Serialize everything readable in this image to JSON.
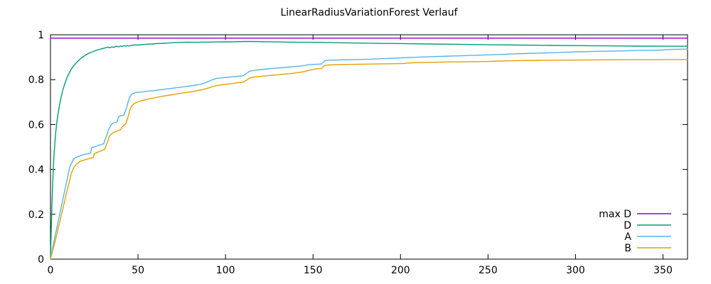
{
  "title": "LinearRadiusVariationForest Verlauf",
  "colors": {
    "axis": "#000000",
    "background": "#ffffff"
  },
  "chart_data": {
    "type": "line",
    "title": "LinearRadiusVariationForest Verlauf",
    "xlabel": "",
    "ylabel": "",
    "xlim": [
      0,
      364
    ],
    "ylim": [
      0,
      1
    ],
    "x_ticks": [
      0,
      50,
      100,
      150,
      200,
      250,
      300,
      350
    ],
    "y_ticks": [
      0,
      0.2,
      0.4,
      0.6,
      0.8,
      1
    ],
    "grid": false,
    "legend_position": "inside-bottom-right",
    "series": [
      {
        "name": "max D",
        "color": "#9400D3",
        "points": [
          [
            0,
            0.985
          ],
          [
            364,
            0.985
          ]
        ]
      },
      {
        "name": "D",
        "color": "#009E73",
        "points": [
          [
            0,
            0
          ],
          [
            0.4,
            0.12
          ],
          [
            0.8,
            0.24
          ],
          [
            1.2,
            0.33
          ],
          [
            1.6,
            0.4
          ],
          [
            2,
            0.46
          ],
          [
            2.5,
            0.52
          ],
          [
            3,
            0.565
          ],
          [
            3.5,
            0.6
          ],
          [
            4,
            0.63
          ],
          [
            5,
            0.68
          ],
          [
            6,
            0.72
          ],
          [
            7,
            0.752
          ],
          [
            8,
            0.778
          ],
          [
            9,
            0.8
          ],
          [
            10,
            0.818
          ],
          [
            11,
            0.834
          ],
          [
            12,
            0.848
          ],
          [
            13,
            0.859
          ],
          [
            14,
            0.869
          ],
          [
            15,
            0.877
          ],
          [
            16,
            0.885
          ],
          [
            17,
            0.892
          ],
          [
            18,
            0.898
          ],
          [
            19,
            0.904
          ],
          [
            20,
            0.909
          ],
          [
            21,
            0.914
          ],
          [
            22,
            0.918
          ],
          [
            23,
            0.921
          ],
          [
            24,
            0.924
          ],
          [
            25,
            0.927
          ],
          [
            26,
            0.93
          ],
          [
            27,
            0.933
          ],
          [
            28,
            0.935
          ],
          [
            29,
            0.937
          ],
          [
            30,
            0.939
          ],
          [
            31,
            0.941
          ],
          [
            32,
            0.943
          ],
          [
            33,
            0.945
          ],
          [
            34,
            0.942
          ],
          [
            35,
            0.946
          ],
          [
            36,
            0.944
          ],
          [
            37,
            0.947
          ],
          [
            38,
            0.949
          ],
          [
            39,
            0.946
          ],
          [
            40,
            0.95
          ],
          [
            41,
            0.948
          ],
          [
            42,
            0.952
          ],
          [
            43,
            0.949
          ],
          [
            44,
            0.952
          ],
          [
            45,
            0.95
          ],
          [
            46,
            0.953
          ],
          [
            48,
            0.955
          ],
          [
            50,
            0.954
          ],
          [
            52,
            0.956
          ],
          [
            55,
            0.958
          ],
          [
            58,
            0.959
          ],
          [
            61,
            0.961
          ],
          [
            64,
            0.962
          ],
          [
            67,
            0.963
          ],
          [
            70,
            0.965
          ],
          [
            74,
            0.966
          ],
          [
            78,
            0.967
          ],
          [
            82,
            0.9665
          ],
          [
            86,
            0.967
          ],
          [
            90,
            0.9675
          ],
          [
            95,
            0.968
          ],
          [
            100,
            0.9685
          ],
          [
            105,
            0.969
          ],
          [
            110,
            0.97
          ],
          [
            116,
            0.97
          ],
          [
            122,
            0.969
          ],
          [
            130,
            0.968
          ],
          [
            138,
            0.9672
          ],
          [
            146,
            0.9665
          ],
          [
            154,
            0.966
          ],
          [
            162,
            0.965
          ],
          [
            170,
            0.9638
          ],
          [
            178,
            0.963
          ],
          [
            188,
            0.9618
          ],
          [
            198,
            0.961
          ],
          [
            208,
            0.9598
          ],
          [
            218,
            0.959
          ],
          [
            228,
            0.9578
          ],
          [
            238,
            0.957
          ],
          [
            248,
            0.956
          ],
          [
            258,
            0.955
          ],
          [
            268,
            0.9542
          ],
          [
            278,
            0.9535
          ],
          [
            288,
            0.9525
          ],
          [
            298,
            0.952
          ],
          [
            308,
            0.9512
          ],
          [
            318,
            0.9505
          ],
          [
            328,
            0.95
          ],
          [
            338,
            0.9495
          ],
          [
            350,
            0.949
          ],
          [
            364,
            0.949
          ]
        ]
      },
      {
        "name": "A",
        "color": "#56B4E9",
        "points": [
          [
            0,
            0
          ],
          [
            2,
            0.08
          ],
          [
            5,
            0.19
          ],
          [
            8,
            0.3
          ],
          [
            11,
            0.41
          ],
          [
            13,
            0.443
          ],
          [
            14,
            0.452
          ],
          [
            16,
            0.458
          ],
          [
            18,
            0.463
          ],
          [
            20,
            0.468
          ],
          [
            22,
            0.471
          ],
          [
            23,
            0.474
          ],
          [
            23.5,
            0.497
          ],
          [
            25,
            0.5
          ],
          [
            27,
            0.506
          ],
          [
            29,
            0.511
          ],
          [
            30.5,
            0.515
          ],
          [
            31,
            0.53
          ],
          [
            32,
            0.548
          ],
          [
            33,
            0.572
          ],
          [
            34,
            0.59
          ],
          [
            35,
            0.602
          ],
          [
            36,
            0.607
          ],
          [
            38,
            0.611
          ],
          [
            38.5,
            0.625
          ],
          [
            39,
            0.636
          ],
          [
            40,
            0.639
          ],
          [
            42,
            0.642
          ],
          [
            42.5,
            0.655
          ],
          [
            43.5,
            0.675
          ],
          [
            44.5,
            0.705
          ],
          [
            45.5,
            0.726
          ],
          [
            46.5,
            0.736
          ],
          [
            48,
            0.741
          ],
          [
            50,
            0.744
          ],
          [
            53,
            0.746
          ],
          [
            56,
            0.749
          ],
          [
            60,
            0.752
          ],
          [
            64,
            0.756
          ],
          [
            68,
            0.76
          ],
          [
            72,
            0.764
          ],
          [
            76,
            0.768
          ],
          [
            80,
            0.772
          ],
          [
            84,
            0.777
          ],
          [
            87,
            0.782
          ],
          [
            89,
            0.788
          ],
          [
            91,
            0.795
          ],
          [
            93,
            0.801
          ],
          [
            95,
            0.806
          ],
          [
            98,
            0.808
          ],
          [
            101,
            0.81
          ],
          [
            104,
            0.813
          ],
          [
            107,
            0.815
          ],
          [
            110,
            0.817
          ],
          [
            111.5,
            0.825
          ],
          [
            113,
            0.834
          ],
          [
            114.5,
            0.839
          ],
          [
            117,
            0.842
          ],
          [
            120,
            0.845
          ],
          [
            124,
            0.848
          ],
          [
            128,
            0.851
          ],
          [
            132,
            0.853
          ],
          [
            136,
            0.856
          ],
          [
            140,
            0.859
          ],
          [
            143,
            0.861
          ],
          [
            145,
            0.863
          ],
          [
            147,
            0.866
          ],
          [
            150,
            0.868
          ],
          [
            153,
            0.869
          ],
          [
            155,
            0.87
          ],
          [
            156,
            0.879
          ],
          [
            157,
            0.885
          ],
          [
            160,
            0.887
          ],
          [
            165,
            0.888
          ],
          [
            170,
            0.889
          ],
          [
            176,
            0.89
          ],
          [
            182,
            0.891
          ],
          [
            188,
            0.893
          ],
          [
            194,
            0.895
          ],
          [
            200,
            0.897
          ],
          [
            206,
            0.899
          ],
          [
            212,
            0.901
          ],
          [
            220,
            0.903
          ],
          [
            228,
            0.905
          ],
          [
            236,
            0.907
          ],
          [
            244,
            0.909
          ],
          [
            252,
            0.911
          ],
          [
            260,
            0.913
          ],
          [
            264,
            0.915
          ],
          [
            270,
            0.916
          ],
          [
            278,
            0.918
          ],
          [
            286,
            0.92
          ],
          [
            294,
            0.922
          ],
          [
            302,
            0.924
          ],
          [
            310,
            0.926
          ],
          [
            318,
            0.927
          ],
          [
            326,
            0.928
          ],
          [
            334,
            0.93
          ],
          [
            342,
            0.931
          ],
          [
            350,
            0.932
          ],
          [
            351,
            0.934
          ],
          [
            356,
            0.935
          ],
          [
            364,
            0.936
          ]
        ]
      },
      {
        "name": "B",
        "color": "#E69F00",
        "points": [
          [
            0,
            0
          ],
          [
            3,
            0.09
          ],
          [
            6,
            0.19
          ],
          [
            9,
            0.29
          ],
          [
            12,
            0.385
          ],
          [
            13.5,
            0.41
          ],
          [
            15,
            0.425
          ],
          [
            17,
            0.436
          ],
          [
            19,
            0.441
          ],
          [
            21,
            0.446
          ],
          [
            23,
            0.45
          ],
          [
            24.5,
            0.453
          ],
          [
            25,
            0.47
          ],
          [
            27,
            0.477
          ],
          [
            29,
            0.483
          ],
          [
            31,
            0.489
          ],
          [
            31.5,
            0.5
          ],
          [
            32.5,
            0.52
          ],
          [
            33.5,
            0.546
          ],
          [
            34.5,
            0.557
          ],
          [
            36,
            0.564
          ],
          [
            38,
            0.571
          ],
          [
            40,
            0.577
          ],
          [
            41,
            0.59
          ],
          [
            42,
            0.598
          ],
          [
            43,
            0.602
          ],
          [
            43.5,
            0.612
          ],
          [
            44.5,
            0.64
          ],
          [
            45.5,
            0.668
          ],
          [
            46.5,
            0.684
          ],
          [
            48,
            0.694
          ],
          [
            50,
            0.702
          ],
          [
            53,
            0.708
          ],
          [
            56,
            0.714
          ],
          [
            60,
            0.72
          ],
          [
            64,
            0.726
          ],
          [
            68,
            0.731
          ],
          [
            72,
            0.736
          ],
          [
            76,
            0.741
          ],
          [
            80,
            0.746
          ],
          [
            84,
            0.751
          ],
          [
            87,
            0.756
          ],
          [
            89,
            0.76
          ],
          [
            91,
            0.765
          ],
          [
            93,
            0.77
          ],
          [
            95,
            0.774
          ],
          [
            98,
            0.777
          ],
          [
            101,
            0.78
          ],
          [
            104,
            0.783
          ],
          [
            107,
            0.786
          ],
          [
            110,
            0.789
          ],
          [
            112,
            0.797
          ],
          [
            113.5,
            0.806
          ],
          [
            115,
            0.81
          ],
          [
            118,
            0.813
          ],
          [
            122,
            0.816
          ],
          [
            126,
            0.819
          ],
          [
            130,
            0.822
          ],
          [
            134,
            0.825
          ],
          [
            138,
            0.828
          ],
          [
            142,
            0.832
          ],
          [
            145,
            0.836
          ],
          [
            147,
            0.84
          ],
          [
            149,
            0.844
          ],
          [
            151,
            0.847
          ],
          [
            153,
            0.849
          ],
          [
            155,
            0.85
          ],
          [
            156,
            0.86
          ],
          [
            157,
            0.864
          ],
          [
            160,
            0.866
          ],
          [
            165,
            0.867
          ],
          [
            170,
            0.868
          ],
          [
            178,
            0.869
          ],
          [
            186,
            0.87
          ],
          [
            194,
            0.871
          ],
          [
            202,
            0.872
          ],
          [
            204,
            0.874
          ],
          [
            208,
            0.876
          ],
          [
            214,
            0.877
          ],
          [
            222,
            0.878
          ],
          [
            230,
            0.879
          ],
          [
            240,
            0.88
          ],
          [
            250,
            0.881
          ],
          [
            256,
            0.883
          ],
          [
            262,
            0.884
          ],
          [
            270,
            0.885
          ],
          [
            280,
            0.886
          ],
          [
            290,
            0.887
          ],
          [
            300,
            0.8875
          ],
          [
            310,
            0.888
          ],
          [
            320,
            0.8885
          ],
          [
            330,
            0.889
          ],
          [
            340,
            0.889
          ],
          [
            352,
            0.8895
          ],
          [
            364,
            0.8895
          ]
        ]
      }
    ]
  }
}
